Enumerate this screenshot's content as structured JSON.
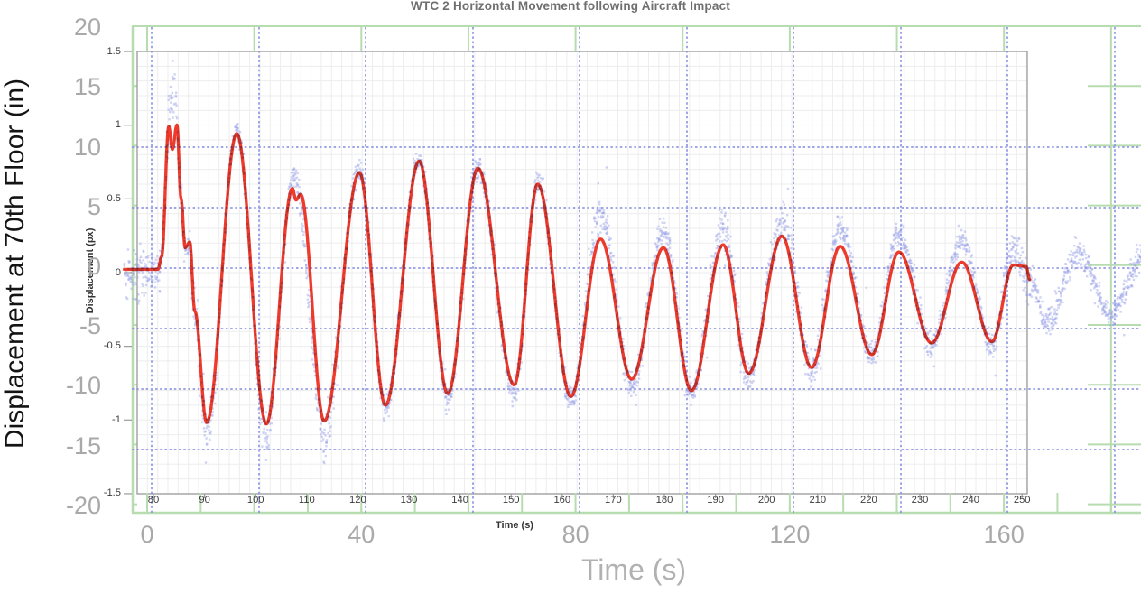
{
  "title": "WTC 2 Horizontal Movement following Aircraft Impact",
  "outer_chart": {
    "y_axis": {
      "label": "Displacement at 70th Floor (in)",
      "ticks": [
        20,
        15,
        10,
        5,
        0,
        -5,
        -10,
        -15,
        -20
      ],
      "range": [
        -20,
        20
      ]
    },
    "x_axis": {
      "label": "Time (s)",
      "ticks": [
        0,
        40,
        80,
        120,
        160
      ],
      "range_shown": [
        0,
        180
      ]
    },
    "grid": "light-green solid major grid"
  },
  "inner_chart": {
    "y_axis": {
      "label": "Displacement (px)",
      "ticks": [
        1.5,
        1,
        0.5,
        0,
        -0.5,
        -1,
        -1.5
      ],
      "range": [
        -1.5,
        1.5
      ]
    },
    "x_axis": {
      "label": "Time (s)",
      "ticks": [
        80,
        90,
        100,
        110,
        120,
        130,
        140,
        150,
        160,
        170,
        180,
        190,
        200,
        210,
        220,
        230,
        240,
        250
      ],
      "range": [
        80,
        250
      ]
    },
    "grid": "fine light-gray grid with dashed blue-violet overlay grid"
  },
  "colors": {
    "scatter": "#96a0e6",
    "fit_line": "#ef3b2d",
    "overlap_tone": "#87242a",
    "green_grid": "#b7dcb0",
    "blue_dashed_grid": "#8a90e2",
    "fine_grid": "#ededed",
    "inner_border": "#999999",
    "outer_tick_text": "#a9a9a9",
    "inner_tick_text": "#3c3c3c",
    "title_text": "#6f6f6f",
    "outer_y_title_text": "#141414"
  },
  "chart_data": {
    "type": "scatter",
    "title": "WTC 2 Horizontal Movement following Aircraft Impact",
    "xlabel": "Time (s)",
    "ylabel": "Displacement (px)",
    "xlim": [
      80,
      250
    ],
    "ylim": [
      -1.5,
      1.5
    ],
    "grid": true,
    "series": [
      {
        "name": "measured-displacement-scatter",
        "style": "scatter",
        "color": "#96a0e6",
        "envelope_keypoints": [
          [
            74.3,
            -0.02
          ],
          [
            80.9,
            -0.02
          ],
          [
            81.6,
            0.1
          ],
          [
            83.0,
            1.05
          ],
          [
            83.6,
            1.25
          ],
          [
            84.3,
            1.15
          ],
          [
            85.4,
            0.5
          ],
          [
            86.2,
            0.16
          ],
          [
            87.1,
            0.18
          ],
          [
            88.1,
            -0.3
          ],
          [
            90.4,
            -1.12
          ],
          [
            96.3,
            0.97
          ],
          [
            102.1,
            -1.12
          ],
          [
            107.5,
            0.66
          ],
          [
            113.4,
            -1.12
          ],
          [
            120.3,
            0.7
          ],
          [
            125.4,
            -0.94
          ],
          [
            132.0,
            0.78
          ],
          [
            137.6,
            -0.88
          ],
          [
            143.5,
            0.72
          ],
          [
            150.6,
            -0.84
          ],
          [
            155.2,
            0.61
          ],
          [
            161.7,
            -0.89
          ],
          [
            167.5,
            0.38
          ],
          [
            173.6,
            -0.79
          ],
          [
            179.8,
            0.28
          ],
          [
            185.3,
            -0.84
          ],
          [
            191.5,
            0.3
          ],
          [
            196.5,
            -0.73
          ],
          [
            203.0,
            0.34
          ],
          [
            208.8,
            -0.68
          ],
          [
            214.4,
            0.3
          ],
          [
            220.6,
            -0.59
          ],
          [
            225.9,
            0.26
          ],
          [
            232.3,
            -0.52
          ],
          [
            238.2,
            0.21
          ],
          [
            244.1,
            -0.52
          ],
          [
            248.3,
            0.16
          ],
          [
            251.5,
            -0.08
          ],
          [
            255.0,
            -0.36
          ],
          [
            260.9,
            0.12
          ],
          [
            267.4,
            -0.3
          ],
          [
            273.9,
            0.1
          ]
        ],
        "noise_sigma": 0.045,
        "noise_boosts": [
          [
            74.0,
            81.4,
            1.9
          ],
          [
            82.6,
            84.8,
            2.6
          ],
          [
            87.6,
            92.6,
            2.1
          ],
          [
            99.5,
            103.8,
            1.7
          ],
          [
            111.0,
            116.2,
            2.1
          ],
          [
            163.0,
            172.0,
            1.5
          ],
          [
            187.0,
            196.0,
            1.4
          ],
          [
            200.0,
            212.0,
            1.4
          ],
          [
            246.0,
            252.0,
            1.4
          ]
        ]
      },
      {
        "name": "fitted-oscillation-line",
        "style": "line",
        "color": "#ef3b2d",
        "keypoints": [
          [
            74.3,
            0.01
          ],
          [
            80.9,
            0.01
          ],
          [
            81.6,
            0.1
          ],
          [
            83.0,
            1.0
          ],
          [
            83.7,
            0.84
          ],
          [
            84.6,
            1.01
          ],
          [
            85.4,
            0.5
          ],
          [
            86.2,
            0.16
          ],
          [
            87.1,
            0.2
          ],
          [
            88.1,
            -0.28
          ],
          [
            90.4,
            -1.05
          ],
          [
            96.3,
            0.95
          ],
          [
            102.1,
            -1.06
          ],
          [
            107.2,
            0.57
          ],
          [
            107.9,
            0.49
          ],
          [
            108.8,
            0.53
          ],
          [
            113.4,
            -1.04
          ],
          [
            120.3,
            0.68
          ],
          [
            125.4,
            -0.93
          ],
          [
            132.0,
            0.76
          ],
          [
            137.6,
            -0.85
          ],
          [
            143.5,
            0.71
          ],
          [
            150.6,
            -0.79
          ],
          [
            155.2,
            0.6
          ],
          [
            161.7,
            -0.87
          ],
          [
            167.5,
            0.22
          ],
          [
            173.6,
            -0.75
          ],
          [
            179.8,
            0.16
          ],
          [
            185.3,
            -0.83
          ],
          [
            191.5,
            0.18
          ],
          [
            196.5,
            -0.71
          ],
          [
            203.0,
            0.24
          ],
          [
            208.8,
            -0.67
          ],
          [
            214.4,
            0.17
          ],
          [
            220.6,
            -0.58
          ],
          [
            225.9,
            0.13
          ],
          [
            232.3,
            -0.5
          ],
          [
            238.2,
            0.06
          ],
          [
            244.1,
            -0.49
          ],
          [
            248.3,
            0.04
          ],
          [
            250.8,
            0.03
          ],
          [
            251.5,
            -0.06
          ]
        ]
      }
    ]
  }
}
